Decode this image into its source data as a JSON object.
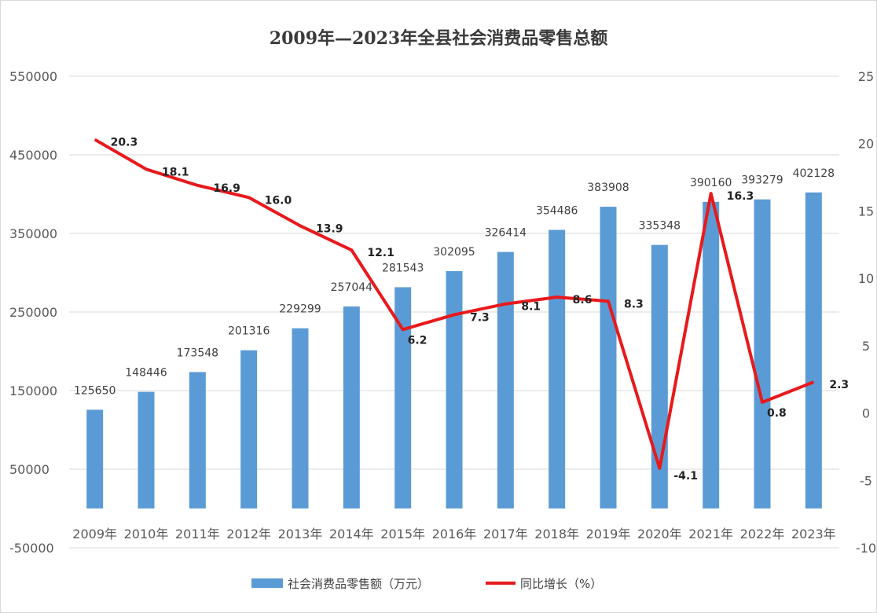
{
  "chart_data": {
    "type": "bar",
    "title": "2009年—2023年全县社会消费品零售总额",
    "categories": [
      "2009年",
      "2010年",
      "2011年",
      "2012年",
      "2013年",
      "2014年",
      "2015年",
      "2016年",
      "2017年",
      "2018年",
      "2019年",
      "2020年",
      "2021年",
      "2022年",
      "2023年"
    ],
    "series": [
      {
        "name": "社会消费品零售额（万元）",
        "type": "bar",
        "axis": "left",
        "color": "#5b9bd5",
        "values": [
          125650,
          148446,
          173548,
          201316,
          229299,
          257044,
          281543,
          302095,
          326414,
          354486,
          383908,
          335348,
          390160,
          393279,
          402128
        ]
      },
      {
        "name": "同比增长（%）",
        "type": "line",
        "axis": "right",
        "color": "#e8191c",
        "values": [
          20.3,
          18.1,
          16.9,
          16.0,
          13.9,
          12.1,
          6.2,
          7.3,
          8.1,
          8.6,
          8.3,
          -4.1,
          16.3,
          0.8,
          2.3
        ]
      }
    ],
    "y_left": {
      "min": -50000,
      "max": 550000,
      "ticks": [
        550000,
        450000,
        350000,
        250000,
        150000,
        50000,
        -50000
      ]
    },
    "y_right": {
      "min": -10,
      "max": 25,
      "ticks": [
        25,
        20,
        15,
        10,
        5,
        0,
        -5,
        -10
      ]
    },
    "grid": true,
    "legend_position": "bottom"
  }
}
